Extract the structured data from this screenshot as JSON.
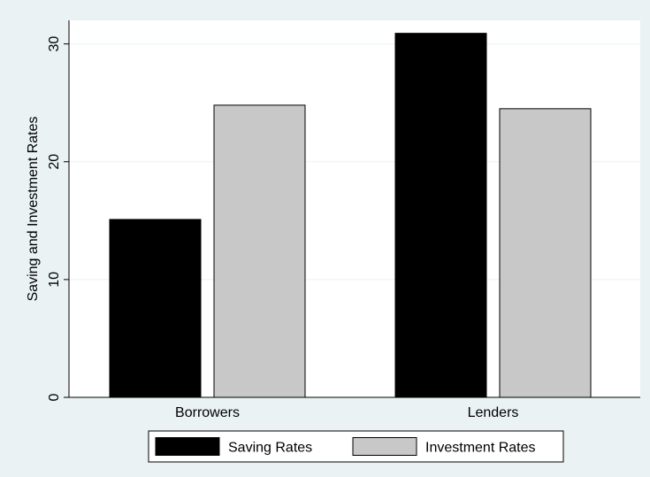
{
  "chart_data": {
    "type": "bar",
    "title": "",
    "xlabel": "",
    "ylabel": "Saving and Investment Rates",
    "categories": [
      "Borrowers",
      "Lenders"
    ],
    "series": [
      {
        "name": "Saving Rates",
        "values": [
          15.1,
          30.9
        ]
      },
      {
        "name": "Investment Rates",
        "values": [
          24.8,
          24.5
        ]
      }
    ],
    "ylim": [
      0,
      32
    ],
    "yticks": [
      0,
      10,
      20,
      30
    ],
    "ytick_labels": [
      "0",
      "10",
      "20",
      "30"
    ],
    "grid": true,
    "legend_position": "bottom",
    "colors": {
      "outer_background": "#eaf2f3",
      "plot_background": "#ffffff",
      "grid": "#eaf2f3",
      "bar_outline": "#000000",
      "series": [
        "#000000",
        "#c8c8c8"
      ]
    }
  }
}
